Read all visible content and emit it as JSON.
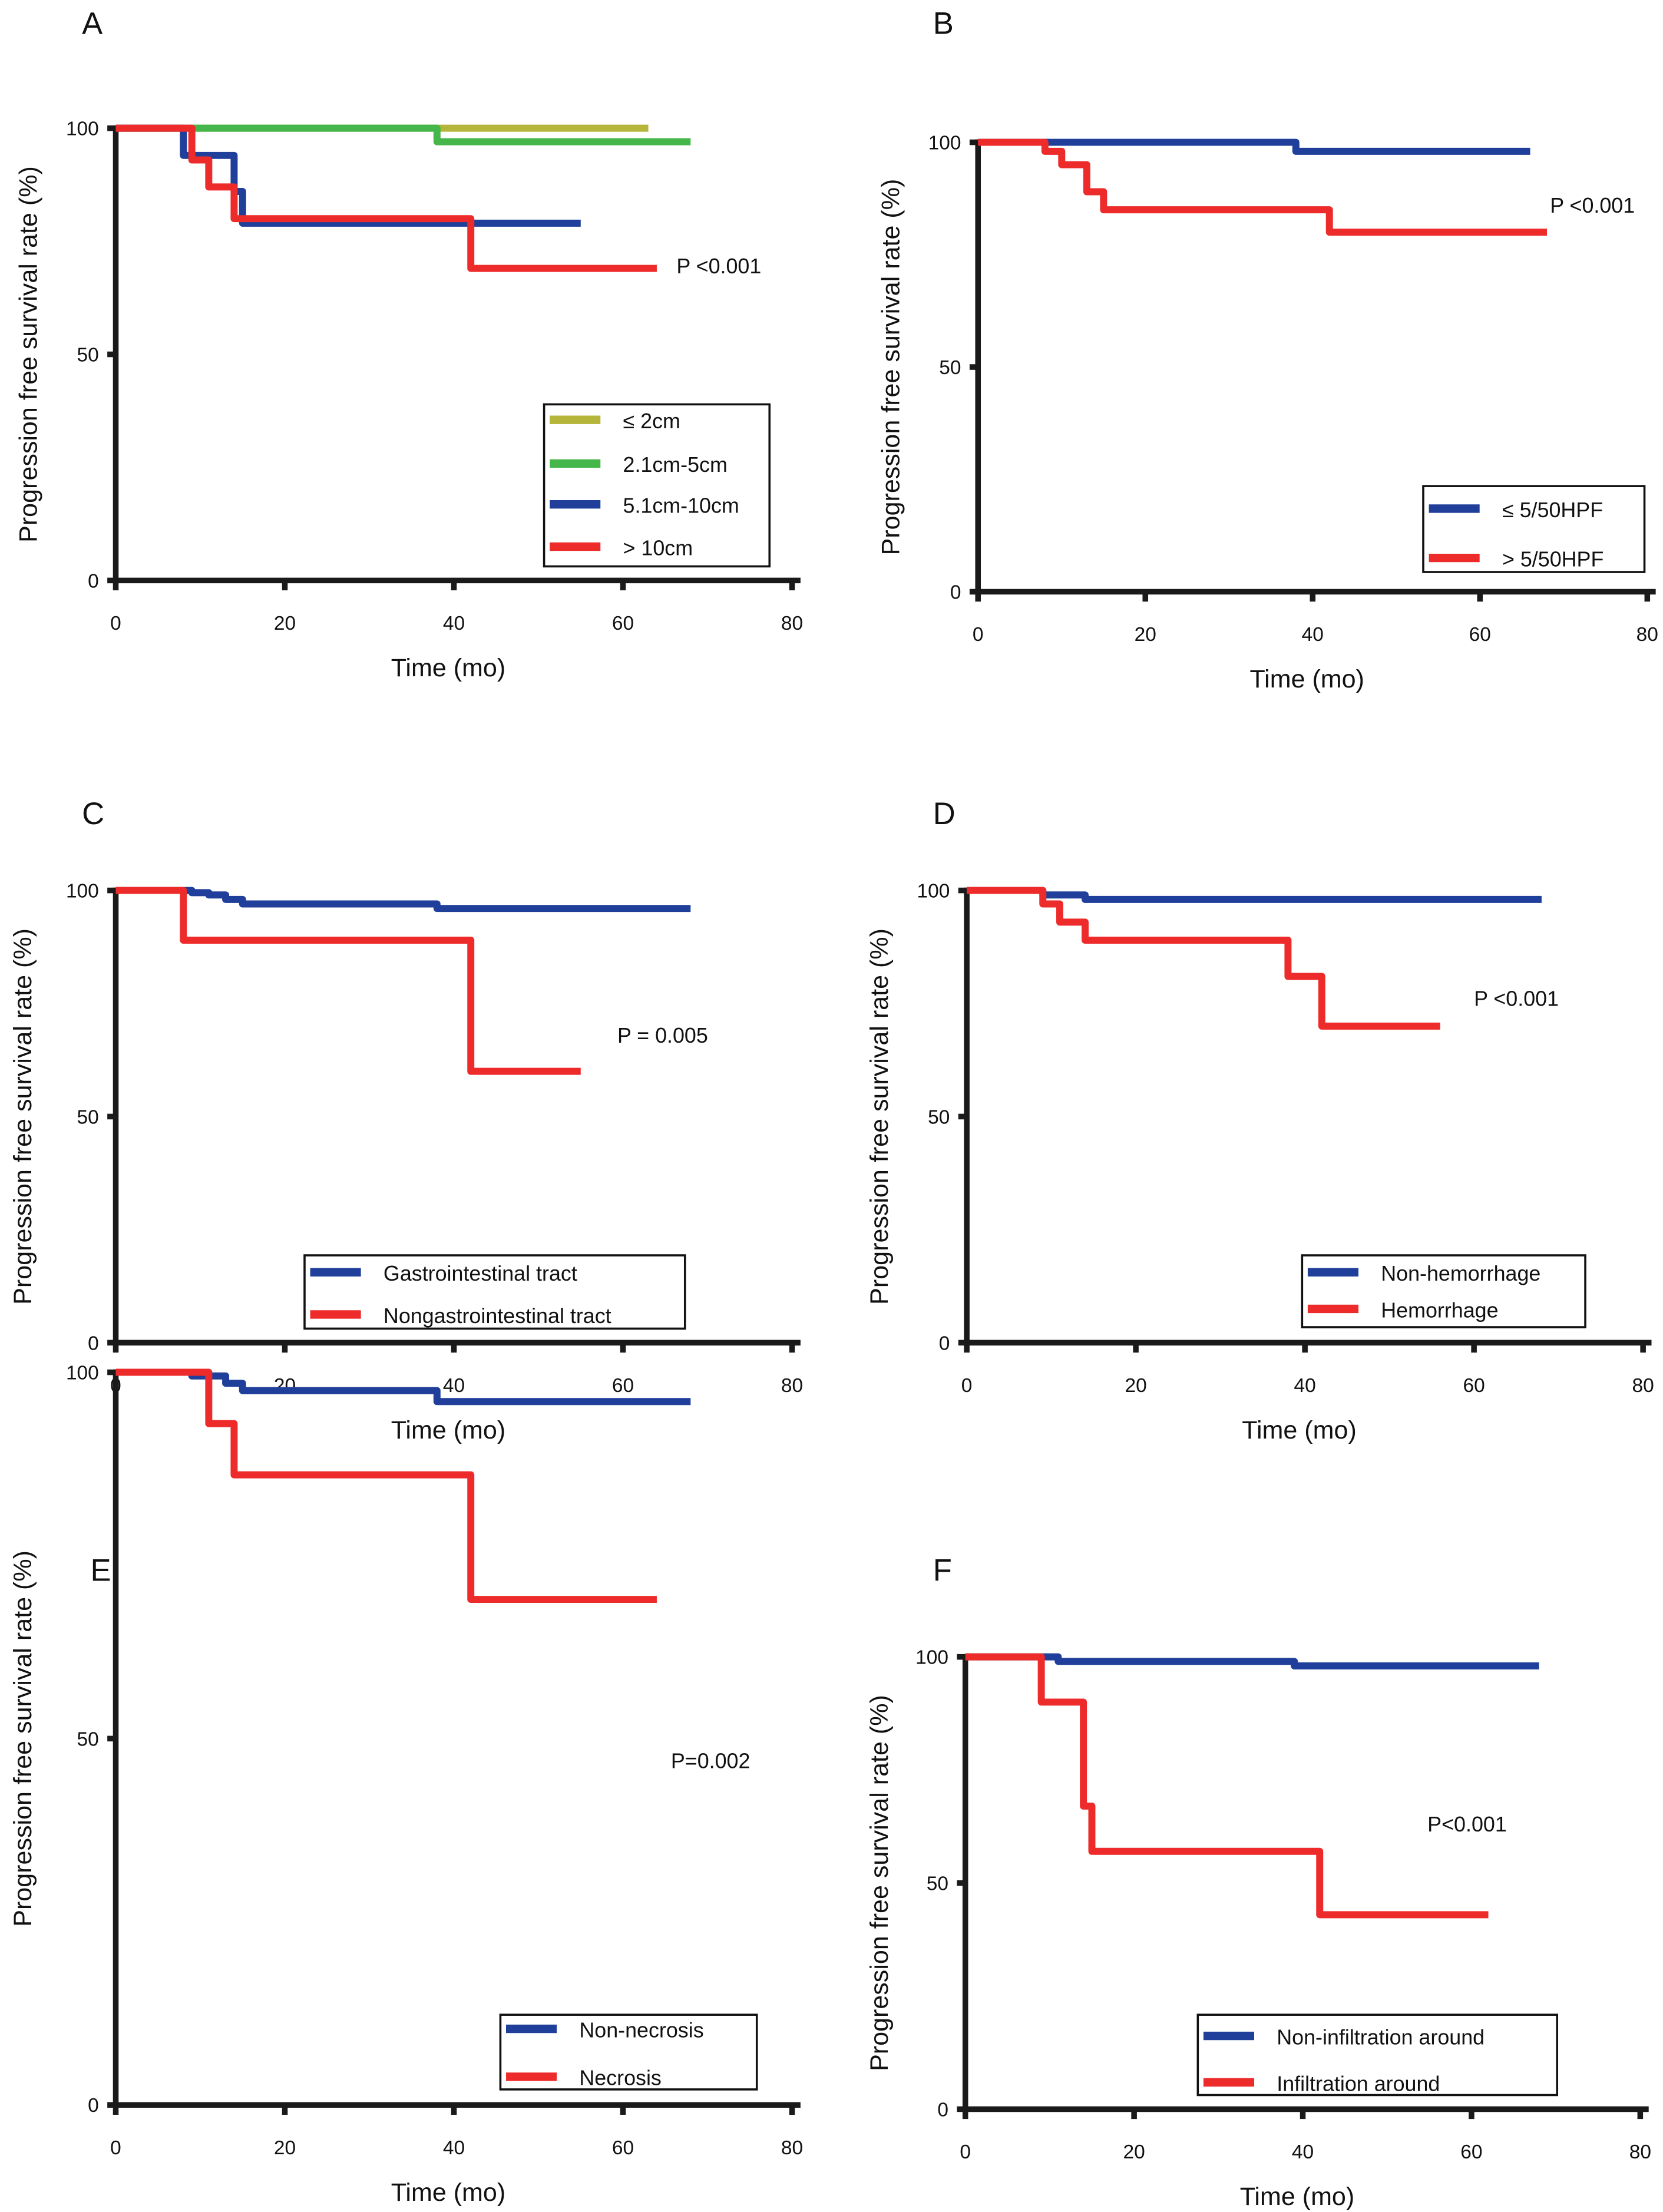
{
  "colors": {
    "blue": "#1f3f9a",
    "red": "#ee2b2b",
    "olive": "#b5b53a",
    "green": "#45b649",
    "axis": "#1a1a1a"
  },
  "chart_data": [
    {
      "panel": "A",
      "type": "line",
      "step": true,
      "xlabel": "Time (mo)",
      "ylabel": "Progression free survival rate (%)",
      "xlim": [
        0,
        80
      ],
      "ylim": [
        0,
        100
      ],
      "xticks": [
        0,
        20,
        40,
        60,
        80
      ],
      "yticks": [
        0,
        50,
        100
      ],
      "annotation": "P <0.001",
      "legend_placement": "bottom-right",
      "series": [
        {
          "name": "≤ 2cm",
          "color": "#b5b53a",
          "points": [
            [
              0,
              100
            ],
            [
              63,
              100
            ]
          ]
        },
        {
          "name": "2.1cm-5cm",
          "color": "#45b649",
          "points": [
            [
              0,
              100
            ],
            [
              38,
              100
            ],
            [
              38,
              97
            ],
            [
              68,
              97
            ]
          ]
        },
        {
          "name": "5.1cm-10cm",
          "color": "#1f3f9a",
          "points": [
            [
              0,
              100
            ],
            [
              8,
              100
            ],
            [
              8,
              94
            ],
            [
              14,
              94
            ],
            [
              14,
              86
            ],
            [
              15,
              86
            ],
            [
              15,
              79
            ],
            [
              55,
              79
            ]
          ]
        },
        {
          "name": "> 10cm",
          "color": "#ee2b2b",
          "points": [
            [
              0,
              100
            ],
            [
              9,
              100
            ],
            [
              9,
              93
            ],
            [
              11,
              93
            ],
            [
              11,
              87
            ],
            [
              14,
              87
            ],
            [
              14,
              80
            ],
            [
              42,
              80
            ],
            [
              42,
              69
            ],
            [
              64,
              69
            ]
          ]
        }
      ]
    },
    {
      "panel": "B",
      "type": "line",
      "step": true,
      "xlabel": "Time (mo)",
      "ylabel": "Progression free survival rate (%)",
      "xlim": [
        0,
        80
      ],
      "ylim": [
        0,
        100
      ],
      "xticks": [
        0,
        20,
        40,
        60,
        80
      ],
      "yticks": [
        0,
        50,
        100
      ],
      "annotation": "P <0.001",
      "legend_placement": "bottom-right",
      "series": [
        {
          "name": "≤ 5/50HPF",
          "color": "#1f3f9a",
          "points": [
            [
              0,
              100
            ],
            [
              38,
              100
            ],
            [
              38,
              98
            ],
            [
              66,
              98
            ]
          ]
        },
        {
          "name": "> 5/50HPF",
          "color": "#ee2b2b",
          "points": [
            [
              0,
              100
            ],
            [
              8,
              100
            ],
            [
              8,
              98
            ],
            [
              10,
              98
            ],
            [
              10,
              95
            ],
            [
              13,
              95
            ],
            [
              13,
              89
            ],
            [
              15,
              89
            ],
            [
              15,
              85
            ],
            [
              42,
              85
            ],
            [
              42,
              80
            ],
            [
              68,
              80
            ]
          ]
        }
      ]
    },
    {
      "panel": "C",
      "type": "line",
      "step": true,
      "xlabel": "Time (mo)",
      "ylabel": "Progression free survival rate (%)",
      "xlim": [
        0,
        80
      ],
      "ylim": [
        0,
        100
      ],
      "xticks": [
        0,
        20,
        40,
        60,
        80
      ],
      "yticks": [
        0,
        50,
        100
      ],
      "annotation": "P = 0.005",
      "legend_placement": "bottom-center",
      "series": [
        {
          "name": "Gastrointestinal tract",
          "color": "#1f3f9a",
          "points": [
            [
              0,
              100
            ],
            [
              9,
              100
            ],
            [
              9,
              99.5
            ],
            [
              11,
              99.5
            ],
            [
              11,
              99
            ],
            [
              13,
              99
            ],
            [
              13,
              98
            ],
            [
              15,
              98
            ],
            [
              15,
              97
            ],
            [
              38,
              97
            ],
            [
              38,
              96
            ],
            [
              68,
              96
            ]
          ]
        },
        {
          "name": "Nongastrointestinal tract",
          "color": "#ee2b2b",
          "points": [
            [
              0,
              100
            ],
            [
              8,
              100
            ],
            [
              8,
              89
            ],
            [
              42,
              89
            ],
            [
              42,
              60
            ],
            [
              55,
              60
            ]
          ]
        }
      ]
    },
    {
      "panel": "D",
      "type": "line",
      "step": true,
      "xlabel": "Time (mo)",
      "ylabel": "Progression free survival rate (%)",
      "xlim": [
        0,
        80
      ],
      "ylim": [
        0,
        100
      ],
      "xticks": [
        0,
        20,
        40,
        60,
        80
      ],
      "yticks": [
        0,
        50,
        100
      ],
      "annotation": "P <0.001",
      "legend_placement": "bottom-right",
      "series": [
        {
          "name": "Non-hemorrhage",
          "color": "#1f3f9a",
          "points": [
            [
              0,
              100
            ],
            [
              9,
              100
            ],
            [
              9,
              99
            ],
            [
              14,
              99
            ],
            [
              14,
              98
            ],
            [
              68,
              98
            ]
          ]
        },
        {
          "name": "Hemorrhage",
          "color": "#ee2b2b",
          "points": [
            [
              0,
              100
            ],
            [
              9,
              100
            ],
            [
              9,
              97
            ],
            [
              11,
              97
            ],
            [
              11,
              93
            ],
            [
              14,
              93
            ],
            [
              14,
              89
            ],
            [
              38,
              89
            ],
            [
              38,
              81
            ],
            [
              42,
              81
            ],
            [
              42,
              70
            ],
            [
              56,
              70
            ]
          ]
        }
      ]
    },
    {
      "panel": "E",
      "type": "line",
      "step": true,
      "xlabel": "Time (mo)",
      "ylabel": "Progression free survival rate (%)",
      "xlim": [
        0,
        80
      ],
      "ylim": [
        0,
        100
      ],
      "xticks": [
        0,
        20,
        40,
        60,
        80
      ],
      "yticks": [
        0,
        50,
        100
      ],
      "annotation": "P=0.002",
      "legend_placement": "bottom-right",
      "series": [
        {
          "name": "Non-necrosis",
          "color": "#1f3f9a",
          "points": [
            [
              0,
              100
            ],
            [
              9,
              100
            ],
            [
              9,
              99.5
            ],
            [
              13,
              99.5
            ],
            [
              13,
              98.5
            ],
            [
              15,
              98.5
            ],
            [
              15,
              97.5
            ],
            [
              38,
              97.5
            ],
            [
              38,
              96
            ],
            [
              68,
              96
            ]
          ]
        },
        {
          "name": "Necrosis",
          "color": "#ee2b2b",
          "points": [
            [
              0,
              100
            ],
            [
              11,
              100
            ],
            [
              11,
              93
            ],
            [
              14,
              93
            ],
            [
              14,
              86
            ],
            [
              42,
              86
            ],
            [
              42,
              69
            ],
            [
              64,
              69
            ]
          ]
        }
      ]
    },
    {
      "panel": "F",
      "type": "line",
      "step": true,
      "xlabel": "Time (mo)",
      "ylabel": "Progression free survival rate (%)",
      "xlim": [
        0,
        80
      ],
      "ylim": [
        0,
        100
      ],
      "xticks": [
        0,
        20,
        40,
        60,
        80
      ],
      "yticks": [
        0,
        50,
        100
      ],
      "annotation": "P<0.001",
      "legend_placement": "bottom-right",
      "series": [
        {
          "name": "Non-infiltration around",
          "color": "#1f3f9a",
          "points": [
            [
              0,
              100
            ],
            [
              11,
              100
            ],
            [
              11,
              99
            ],
            [
              39,
              99
            ],
            [
              39,
              98
            ],
            [
              68,
              98
            ]
          ]
        },
        {
          "name": "Infiltration around",
          "color": "#ee2b2b",
          "points": [
            [
              0,
              100
            ],
            [
              9,
              100
            ],
            [
              9,
              90
            ],
            [
              14,
              90
            ],
            [
              14,
              67
            ],
            [
              15,
              67
            ],
            [
              15,
              57
            ],
            [
              42,
              57
            ],
            [
              42,
              43
            ],
            [
              62,
              43
            ]
          ]
        }
      ]
    }
  ]
}
